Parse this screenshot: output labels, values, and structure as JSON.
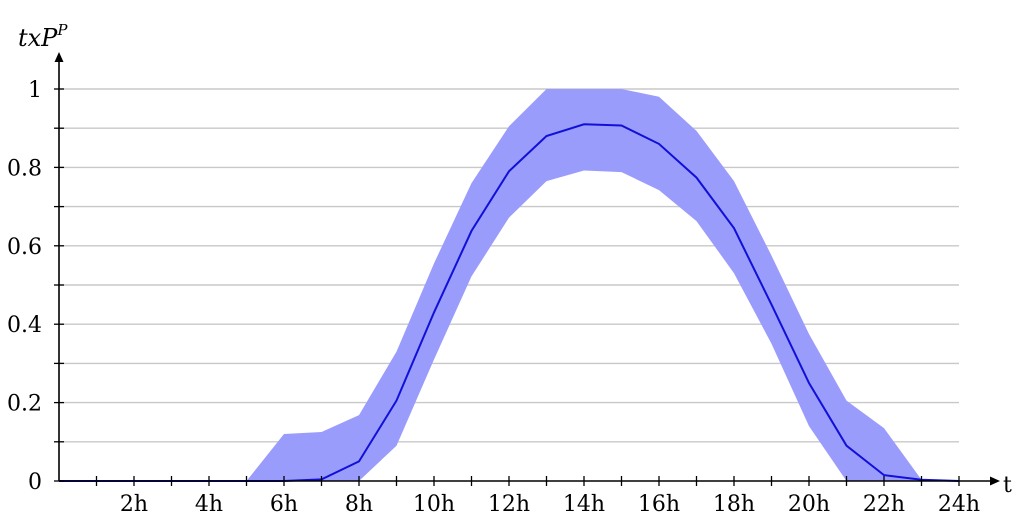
{
  "chart_data": {
    "type": "area",
    "ylabel": "txP",
    "ylabel_sup": "P",
    "xlabel": "t",
    "x": [
      0,
      1,
      2,
      3,
      4,
      5,
      6,
      7,
      8,
      9,
      10,
      11,
      12,
      13,
      14,
      15,
      16,
      17,
      18,
      19,
      20,
      21,
      22,
      23,
      24
    ],
    "x_ticks": [
      2,
      4,
      6,
      8,
      10,
      12,
      14,
      16,
      18,
      20,
      22,
      24
    ],
    "x_tick_labels": [
      "2h",
      "4h",
      "6h",
      "8h",
      "10h",
      "12h",
      "14h",
      "16h",
      "18h",
      "20h",
      "22h",
      "24h"
    ],
    "y_ticks": [
      0,
      0.2,
      0.4,
      0.6,
      0.8,
      1
    ],
    "y_tick_labels": [
      "0",
      "0.2",
      "0.4",
      "0.6",
      "0.8",
      "1"
    ],
    "xlim": [
      0,
      24
    ],
    "ylim": [
      0,
      1
    ],
    "grid": true,
    "series": [
      {
        "role": "mean",
        "values": [
          0,
          0,
          0,
          0,
          0,
          0,
          0,
          0.004,
          0.05,
          0.205,
          0.43,
          0.638,
          0.79,
          0.88,
          0.91,
          0.907,
          0.86,
          0.774,
          0.645,
          0.45,
          0.25,
          0.09,
          0.015,
          0.003,
          0
        ]
      },
      {
        "role": "upper",
        "values": [
          0,
          0,
          0,
          0,
          0,
          0,
          0.12,
          0.125,
          0.168,
          0.33,
          0.555,
          0.76,
          0.905,
          1,
          1,
          1,
          0.98,
          0.893,
          0.765,
          0.575,
          0.375,
          0.205,
          0.135,
          0.003,
          0
        ]
      },
      {
        "role": "lower",
        "values": [
          0,
          0,
          0,
          0,
          0,
          0,
          0,
          0,
          0,
          0.09,
          0.31,
          0.522,
          0.672,
          0.765,
          0.792,
          0.788,
          0.742,
          0.663,
          0.53,
          0.35,
          0.14,
          0,
          0,
          0,
          0
        ]
      }
    ],
    "colors": {
      "band": "#9a9cfc",
      "line": "#1010d8",
      "grid": "#c8c8c8",
      "axis": "#000000"
    }
  }
}
